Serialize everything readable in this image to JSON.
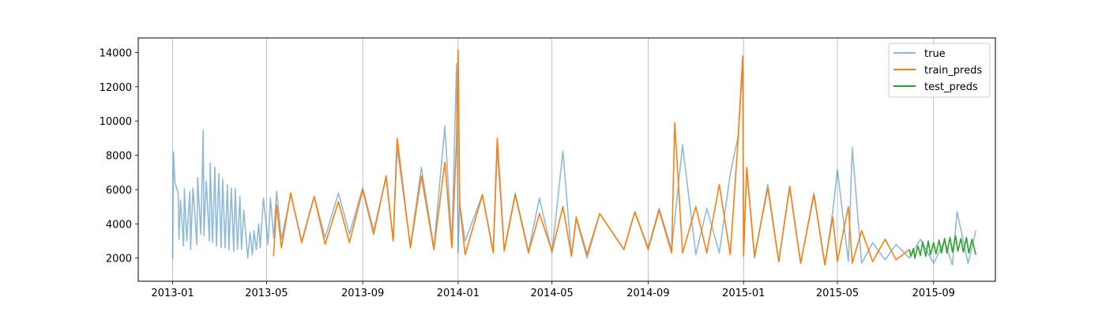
{
  "chart_data": {
    "type": "line",
    "title": "",
    "xlabel": "",
    "ylabel": "",
    "xlim": [
      "2012-11-18",
      "2015-11-19"
    ],
    "ylim": [
      650,
      14850
    ],
    "grid": "x-axis only",
    "legend_position": "top-right",
    "xticks": [
      "2013-01-01",
      "2013-05-01",
      "2013-09-01",
      "2014-01-01",
      "2014-05-01",
      "2014-09-01",
      "2015-01-01",
      "2015-05-01",
      "2015-09-01"
    ],
    "xtick_labels": [
      "2013-01",
      "2013-05",
      "2013-09",
      "2014-01",
      "2014-05",
      "2014-09",
      "2015-01",
      "2015-05",
      "2015-09"
    ],
    "yticks": [
      2000,
      4000,
      6000,
      8000,
      10000,
      12000,
      14000
    ],
    "ytick_labels": [
      "2000",
      "4000",
      "6000",
      "8000",
      "10000",
      "12000",
      "14000"
    ],
    "series": [
      {
        "name": "true",
        "color": "#1f77b4",
        "opacity": 0.5,
        "x": [
          "2013-01-01",
          "2013-01-02",
          "2013-01-04",
          "2013-01-08",
          "2013-01-09",
          "2013-01-11",
          "2013-01-15",
          "2013-01-16",
          "2013-01-19",
          "2013-01-23",
          "2013-01-24",
          "2013-01-27",
          "2013-02-01",
          "2013-02-02",
          "2013-02-06",
          "2013-02-09",
          "2013-02-10",
          "2013-02-13",
          "2013-02-17",
          "2013-02-18",
          "2013-02-21",
          "2013-02-24",
          "2013-02-26",
          "2013-03-01",
          "2013-03-04",
          "2013-03-06",
          "2013-03-09",
          "2013-03-12",
          "2013-03-14",
          "2013-03-17",
          "2013-03-20",
          "2013-03-22",
          "2013-03-25",
          "2013-03-28",
          "2013-03-30",
          "2013-04-02",
          "2013-04-05",
          "2013-04-07",
          "2013-04-10",
          "2013-04-13",
          "2013-04-15",
          "2013-04-18",
          "2013-04-21",
          "2013-04-23",
          "2013-04-27",
          "2013-04-30",
          "2013-05-03",
          "2013-05-06",
          "2013-05-10",
          "2013-05-14",
          "2013-05-20",
          "2013-06-01",
          "2013-06-15",
          "2013-07-01",
          "2013-07-15",
          "2013-08-01",
          "2013-08-15",
          "2013-09-01",
          "2013-09-15",
          "2013-10-01",
          "2013-10-10",
          "2013-10-15",
          "2013-11-01",
          "2013-11-15",
          "2013-12-01",
          "2013-12-15",
          "2013-12-24",
          "2013-12-30",
          "2014-01-01",
          "2014-01-03",
          "2014-01-10",
          "2014-02-01",
          "2014-02-15",
          "2014-02-20",
          "2014-03-01",
          "2014-03-15",
          "2014-04-01",
          "2014-04-15",
          "2014-05-01",
          "2014-05-15",
          "2014-05-26",
          "2014-06-01",
          "2014-06-15",
          "2014-07-01",
          "2014-08-01",
          "2014-08-15",
          "2014-09-01",
          "2014-09-15",
          "2014-10-01",
          "2014-10-15",
          "2014-11-01",
          "2014-11-15",
          "2014-12-01",
          "2014-12-15",
          "2014-12-25",
          "2014-12-31",
          "2015-01-01",
          "2015-01-05",
          "2015-01-15",
          "2015-02-01",
          "2015-02-15",
          "2015-03-01",
          "2015-03-15",
          "2015-04-01",
          "2015-04-15",
          "2015-04-25",
          "2015-05-01",
          "2015-05-15",
          "2015-05-20",
          "2015-06-01",
          "2015-06-15",
          "2015-07-01",
          "2015-07-15",
          "2015-08-01",
          "2015-08-15",
          "2015-09-01",
          "2015-09-15",
          "2015-09-25",
          "2015-10-01",
          "2015-10-15",
          "2015-10-25"
        ],
        "y": [
          1950,
          8200,
          6400,
          5800,
          3100,
          5400,
          2700,
          6050,
          3000,
          5900,
          2500,
          6100,
          2800,
          6700,
          3400,
          9450,
          3300,
          6500,
          3000,
          7550,
          2900,
          7300,
          2700,
          6950,
          2600,
          6600,
          2600,
          6300,
          2500,
          6100,
          2400,
          6050,
          2500,
          5600,
          2500,
          4800,
          3100,
          2000,
          3500,
          2200,
          3600,
          2500,
          4000,
          2600,
          5500,
          4200,
          2800,
          5500,
          3200,
          5900,
          3100,
          5700,
          3000,
          5600,
          3200,
          5800,
          3400,
          6100,
          3600,
          6700,
          3000,
          8450,
          2700,
          7300,
          2600,
          9700,
          2700,
          13350,
          2300,
          5200,
          3000,
          5700,
          2400,
          8350,
          2500,
          5800,
          2400,
          5500,
          2300,
          8250,
          2100,
          4300,
          2000,
          4600,
          2500,
          4700,
          2600,
          4900,
          2500,
          8600,
          2200,
          4900,
          2300,
          6900,
          9100,
          13300,
          2200,
          7200,
          2000,
          6300,
          1800,
          6100,
          1700,
          5800,
          1600,
          4700,
          7150,
          1800,
          8450,
          1700,
          2900,
          1900,
          2800,
          2000,
          3100,
          1700,
          3000,
          1600,
          4700,
          1700,
          3600
        ]
      },
      {
        "name": "train_preds",
        "color": "#ff7f0e",
        "opacity": 1,
        "x": [
          "2013-05-10",
          "2013-05-14",
          "2013-05-20",
          "2013-06-01",
          "2013-06-15",
          "2013-07-01",
          "2013-07-15",
          "2013-08-01",
          "2013-08-15",
          "2013-09-01",
          "2013-09-15",
          "2013-10-01",
          "2013-10-10",
          "2013-10-15",
          "2013-11-01",
          "2013-11-15",
          "2013-12-01",
          "2013-12-15",
          "2013-12-24",
          "2013-12-30",
          "2014-01-01",
          "2014-01-03",
          "2014-01-10",
          "2014-02-01",
          "2014-02-15",
          "2014-02-20",
          "2014-03-01",
          "2014-03-15",
          "2014-04-01",
          "2014-04-15",
          "2014-05-01",
          "2014-05-15",
          "2014-05-26",
          "2014-06-01",
          "2014-06-15",
          "2014-07-01",
          "2014-08-01",
          "2014-08-15",
          "2014-09-01",
          "2014-09-15",
          "2014-10-01",
          "2014-10-05",
          "2014-10-15",
          "2014-11-01",
          "2014-11-15",
          "2014-12-01",
          "2014-12-15",
          "2014-12-25",
          "2014-12-31",
          "2015-01-01",
          "2015-01-05",
          "2015-01-15",
          "2015-02-01",
          "2015-02-15",
          "2015-03-01",
          "2015-03-15",
          "2015-04-01",
          "2015-04-15",
          "2015-04-25",
          "2015-05-01",
          "2015-05-15",
          "2015-05-20",
          "2015-06-01",
          "2015-06-15",
          "2015-07-01",
          "2015-07-15",
          "2015-08-01"
        ],
        "y": [
          2100,
          5100,
          2600,
          5800,
          2900,
          5600,
          2800,
          5300,
          2900,
          6000,
          3400,
          6800,
          3000,
          9000,
          2600,
          6800,
          2500,
          7600,
          2600,
          8800,
          14150,
          5100,
          2200,
          5700,
          2300,
          9000,
          2400,
          5700,
          2300,
          4600,
          2400,
          5000,
          2100,
          4400,
          2200,
          4600,
          2500,
          4700,
          2500,
          4800,
          2300,
          9900,
          2300,
          5000,
          2300,
          6300,
          2200,
          8900,
          13800,
          2100,
          7300,
          2100,
          6100,
          1800,
          6200,
          1700,
          5700,
          1600,
          4400,
          1800,
          5000,
          1700,
          3600,
          1800,
          3100,
          1900,
          2500
        ]
      },
      {
        "name": "test_preds",
        "color": "#2ca02c",
        "opacity": 1,
        "x": [
          "2015-08-01",
          "2015-08-03",
          "2015-08-06",
          "2015-08-08",
          "2015-08-12",
          "2015-08-15",
          "2015-08-18",
          "2015-08-22",
          "2015-08-25",
          "2015-08-28",
          "2015-09-01",
          "2015-09-04",
          "2015-09-08",
          "2015-09-11",
          "2015-09-15",
          "2015-09-18",
          "2015-09-22",
          "2015-09-25",
          "2015-09-29",
          "2015-10-02",
          "2015-10-06",
          "2015-10-09",
          "2015-10-13",
          "2015-10-16",
          "2015-10-20",
          "2015-10-25"
        ],
        "y": [
          2500,
          2100,
          2550,
          2000,
          2700,
          2150,
          2950,
          2100,
          3000,
          2200,
          2900,
          2250,
          3050,
          2300,
          3150,
          2300,
          3200,
          2350,
          3300,
          2400,
          3150,
          2350,
          3200,
          2300,
          3100,
          2200
        ]
      }
    ]
  }
}
